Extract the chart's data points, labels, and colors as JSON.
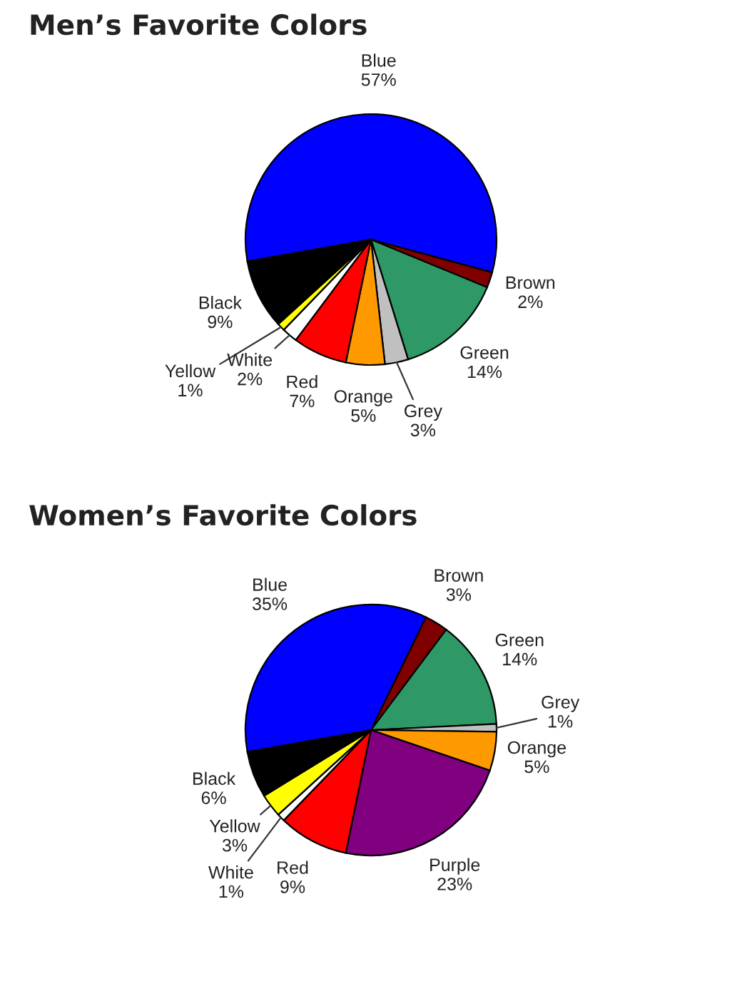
{
  "chart_data": [
    {
      "type": "pie",
      "title": "Men’s Favorite Colors",
      "categories": [
        "Blue",
        "Brown",
        "Green",
        "Grey",
        "Orange",
        "Red",
        "White",
        "Yellow",
        "Black"
      ],
      "values": [
        57,
        2,
        14,
        3,
        5,
        7,
        2,
        1,
        9
      ],
      "value_labels": [
        "57%",
        "2%",
        "14%",
        "3%",
        "5%",
        "7%",
        "2%",
        "1%",
        "9%"
      ],
      "colors": [
        "#0000ff",
        "#800000",
        "#2e9966",
        "#c0c0c0",
        "#ff9900",
        "#ff0000",
        "#ffffff",
        "#ffff00",
        "#000000"
      ]
    },
    {
      "type": "pie",
      "title": "Women’s Favorite Colors",
      "categories": [
        "Blue",
        "Brown",
        "Green",
        "Grey",
        "Orange",
        "Purple",
        "Red",
        "White",
        "Yellow",
        "Black"
      ],
      "values": [
        35,
        3,
        14,
        1,
        5,
        23,
        9,
        1,
        3,
        6
      ],
      "value_labels": [
        "35%",
        "3%",
        "14%",
        "1%",
        "5%",
        "23%",
        "9%",
        "1%",
        "3%",
        "6%"
      ],
      "colors": [
        "#0000ff",
        "#800000",
        "#2e9966",
        "#c0c0c0",
        "#ff9900",
        "#800080",
        "#ff0000",
        "#ffffff",
        "#ffff00",
        "#000000"
      ]
    }
  ]
}
